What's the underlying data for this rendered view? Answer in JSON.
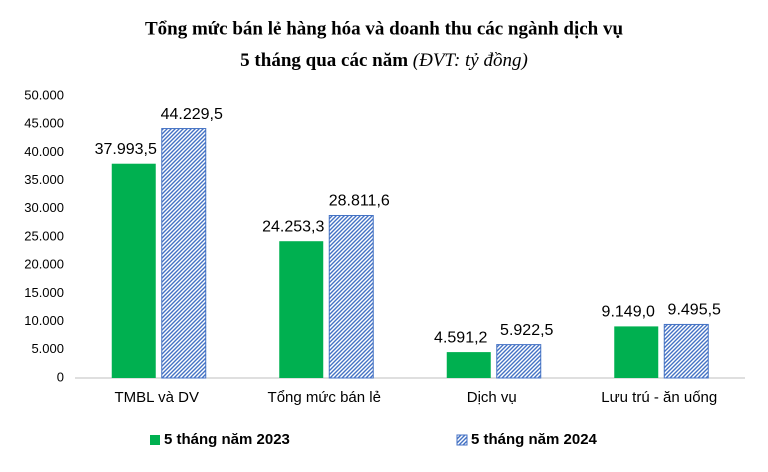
{
  "chart_data": {
    "type": "bar",
    "title": "Tổng mức bán lẻ hàng hóa và doanh thu các ngành dịch vụ",
    "subtitle": "5 tháng qua các năm",
    "unit_note": "(ĐVT: tỷ đồng)",
    "categories": [
      "TMBL và DV",
      "Tổng mức bán lẻ",
      "Dịch vụ",
      "Lưu trú - ăn uống"
    ],
    "series": [
      {
        "name": "5 tháng năm 2023",
        "color": "#00b050",
        "values": [
          37993.5,
          24253.3,
          4591.2,
          9149.0
        ],
        "value_labels": [
          "37.993,5",
          "24.253,3",
          "4.591,2",
          "9.149,0"
        ]
      },
      {
        "name": "5 tháng năm 2024",
        "color": "#4472c4",
        "pattern": "hatch",
        "values": [
          44229.5,
          28811.6,
          5922.5,
          9495.5
        ],
        "value_labels": [
          "44.229,5",
          "28.811,6",
          "5.922,5",
          "9.495,5"
        ]
      }
    ],
    "ylim": [
      0,
      50000
    ],
    "yticks": [
      0,
      {
        "value": 5000,
        "label": "5.000"
      },
      {
        "value": 10000,
        "label": "10.000"
      },
      {
        "value": 15000,
        "label": "15.000"
      },
      {
        "value": 20000,
        "label": "20.000"
      },
      {
        "value": 25000,
        "label": "25.000"
      },
      {
        "value": 30000,
        "label": "30.000"
      },
      {
        "value": 35000,
        "label": "35.000"
      },
      {
        "value": 40000,
        "label": "40.000"
      },
      {
        "value": 45000,
        "label": "45.000"
      },
      {
        "value": 50000,
        "label": "50.000"
      }
    ],
    "grid": false,
    "legend": "bottom"
  }
}
